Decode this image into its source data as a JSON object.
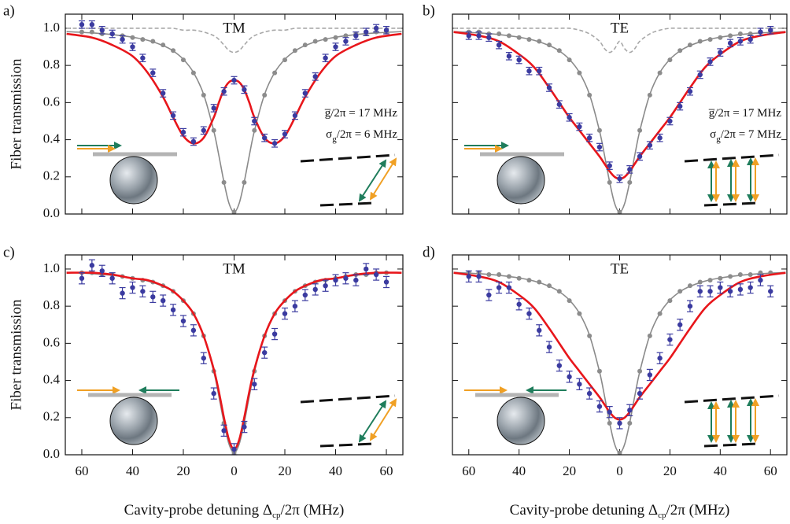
{
  "chart_data": [
    {
      "type": "scatter",
      "panel": "a)",
      "title": "TM",
      "annotations": [
        [
          "g̅/2π = 17 MHz"
        ],
        [
          "σ",
          "g",
          "/2π = 6 MHz"
        ]
      ],
      "y_label": "Fiber transmission",
      "x": [
        -60,
        -56,
        -52,
        -48,
        -44,
        -40,
        -36,
        -32,
        -28,
        -24,
        -20,
        -16,
        -12,
        -8,
        -4,
        0,
        4,
        8,
        12,
        16,
        20,
        24,
        28,
        32,
        36,
        40,
        44,
        48,
        52,
        56,
        60
      ],
      "curve_x": [
        -66,
        -56,
        -48,
        -40,
        -34,
        -28,
        -24,
        -20,
        -16,
        -12,
        -8,
        -6,
        -4,
        -2,
        0,
        2,
        4,
        6,
        8,
        12,
        16,
        20,
        24,
        28,
        34,
        40,
        48,
        56,
        66
      ],
      "xlim": [
        -66.5,
        66.5
      ],
      "ylim": [
        0,
        1.076
      ],
      "xticks": [
        {
          "value": -60,
          "label": "60"
        },
        {
          "value": -40,
          "label": "40"
        },
        {
          "value": -20,
          "label": "20"
        },
        0,
        20,
        40,
        60
      ],
      "yticks": [
        {
          "value": 0,
          "label": "0.0"
        },
        0.2,
        0.4,
        0.6,
        0.8,
        {
          "value": 1,
          "label": "1.0"
        }
      ],
      "show_xtick_labels": false,
      "show_ytick_labels": true,
      "series": [
        {
          "style": "line",
          "color": "#8a8a8a",
          "values": [
            0.982,
            0.975,
            0.966,
            0.952,
            0.935,
            0.907,
            0.878,
            0.833,
            0.762,
            0.644,
            0.447,
            0.315,
            0.173,
            0.057,
            0.01,
            0.057,
            0.173,
            0.315,
            0.447,
            0.644,
            0.762,
            0.833,
            0.878,
            0.907,
            0.935,
            0.952,
            0.966,
            0.975,
            0.982
          ]
        },
        {
          "style": "dashed",
          "color": "#a8a8a8",
          "values": [
            1,
            1,
            1,
            1,
            1,
            1,
            1,
            0.99,
            0.99,
            0.98,
            0.96,
            0.94,
            0.91,
            0.88,
            0.87,
            0.88,
            0.91,
            0.94,
            0.96,
            0.98,
            0.99,
            0.99,
            1,
            1,
            1,
            1,
            1,
            1,
            1
          ]
        },
        {
          "style": "points",
          "color": "#8c8c8c",
          "values": [
            0.98,
            0.98,
            0.97,
            0.97,
            0.96,
            0.95,
            0.94,
            0.93,
            0.91,
            0.88,
            0.83,
            0.76,
            0.64,
            0.45,
            0.17,
            0.01,
            0.17,
            0.45,
            0.64,
            0.76,
            0.83,
            0.88,
            0.91,
            0.93,
            0.94,
            0.95,
            0.96,
            0.97,
            0.97,
            0.98,
            0.98
          ]
        },
        {
          "style": "line",
          "color": "#e8161b",
          "values": [
            0.97,
            0.95,
            0.91,
            0.85,
            0.76,
            0.63,
            0.52,
            0.42,
            0.38,
            0.41,
            0.52,
            0.6,
            0.67,
            0.71,
            0.72,
            0.71,
            0.67,
            0.6,
            0.52,
            0.41,
            0.38,
            0.42,
            0.52,
            0.63,
            0.76,
            0.85,
            0.91,
            0.95,
            0.97
          ]
        },
        {
          "style": "points",
          "color": "#3b3ba0",
          "error": 0.02,
          "values": [
            1.02,
            1.02,
            0.99,
            0.97,
            0.94,
            0.9,
            0.84,
            0.76,
            0.65,
            0.53,
            0.44,
            0.39,
            0.45,
            0.57,
            0.66,
            0.72,
            0.67,
            0.5,
            0.41,
            0.38,
            0.43,
            0.53,
            0.65,
            0.74,
            0.84,
            0.9,
            0.93,
            0.96,
            0.98,
            1.0,
            0.99
          ]
        }
      ]
    },
    {
      "type": "scatter",
      "panel": "b)",
      "title": "TE",
      "annotations": [
        [
          "g̅/2π = 17 MHz"
        ],
        [
          "σ",
          "g",
          "/2π = 7 MHz"
        ]
      ],
      "x": [
        -60,
        -56,
        -52,
        -48,
        -44,
        -40,
        -36,
        -32,
        -28,
        -24,
        -20,
        -16,
        -12,
        -8,
        -4,
        0,
        4,
        8,
        12,
        16,
        20,
        24,
        28,
        32,
        36,
        40,
        44,
        48,
        52,
        56,
        60
      ],
      "curve_x": [
        -66,
        -56,
        -48,
        -40,
        -34,
        -28,
        -24,
        -20,
        -16,
        -12,
        -8,
        -6,
        -4,
        -2,
        0,
        2,
        4,
        6,
        8,
        12,
        16,
        20,
        24,
        28,
        34,
        40,
        48,
        56,
        66
      ],
      "xlim": [
        -66.5,
        66.5
      ],
      "ylim": [
        0,
        1.076
      ],
      "xticks": [
        {
          "value": -60,
          "label": "60"
        },
        {
          "value": -40,
          "label": "40"
        },
        {
          "value": -20,
          "label": "20"
        },
        0,
        20,
        40,
        60
      ],
      "yticks": [
        {
          "value": 0,
          "label": "0.0"
        },
        0.2,
        0.4,
        0.6,
        0.8,
        {
          "value": 1,
          "label": "1.0"
        }
      ],
      "show_xtick_labels": false,
      "show_ytick_labels": false,
      "series": [
        {
          "style": "line",
          "color": "#8a8a8a",
          "values": [
            0.982,
            0.975,
            0.966,
            0.952,
            0.935,
            0.907,
            0.878,
            0.833,
            0.762,
            0.644,
            0.447,
            0.315,
            0.173,
            0.057,
            0.01,
            0.057,
            0.173,
            0.315,
            0.447,
            0.644,
            0.762,
            0.833,
            0.878,
            0.907,
            0.935,
            0.952,
            0.966,
            0.975,
            0.982
          ]
        },
        {
          "style": "dashed",
          "color": "#a8a8a8",
          "values": [
            1,
            1,
            1,
            1,
            1,
            1,
            1,
            1,
            0.99,
            0.97,
            0.93,
            0.89,
            0.87,
            0.89,
            0.93,
            0.89,
            0.87,
            0.89,
            0.93,
            0.97,
            0.99,
            1,
            1,
            1,
            1,
            1,
            1,
            1,
            1
          ]
        },
        {
          "style": "points",
          "color": "#8c8c8c",
          "values": [
            0.98,
            0.98,
            0.97,
            0.97,
            0.96,
            0.95,
            0.94,
            0.93,
            0.91,
            0.88,
            0.83,
            0.76,
            0.64,
            0.45,
            0.17,
            0.01,
            0.17,
            0.45,
            0.64,
            0.76,
            0.83,
            0.88,
            0.91,
            0.93,
            0.94,
            0.95,
            0.96,
            0.97,
            0.97,
            0.98,
            0.98
          ]
        },
        {
          "style": "line",
          "color": "#e8161b",
          "values": [
            0.98,
            0.96,
            0.93,
            0.86,
            0.79,
            0.68,
            0.6,
            0.52,
            0.45,
            0.38,
            0.31,
            0.27,
            0.23,
            0.2,
            0.19,
            0.2,
            0.23,
            0.27,
            0.31,
            0.38,
            0.45,
            0.52,
            0.6,
            0.68,
            0.79,
            0.86,
            0.93,
            0.96,
            0.98
          ]
        },
        {
          "style": "points",
          "color": "#3b3ba0",
          "error": 0.02,
          "values": [
            0.96,
            0.96,
            0.95,
            0.91,
            0.85,
            0.83,
            0.77,
            0.77,
            0.68,
            0.59,
            0.52,
            0.47,
            0.41,
            0.36,
            0.26,
            0.19,
            0.24,
            0.31,
            0.37,
            0.41,
            0.5,
            0.58,
            0.66,
            0.75,
            0.82,
            0.87,
            0.92,
            0.93,
            0.94,
            0.98,
            0.99
          ]
        }
      ]
    },
    {
      "type": "scatter",
      "panel": "c)",
      "title": "TM",
      "y_label": "Fiber transmission",
      "x_label": [
        "Cavity-probe detuning  Δ",
        "cp",
        "/2π (MHz)"
      ],
      "x": [
        -60,
        -56,
        -52,
        -48,
        -44,
        -40,
        -36,
        -32,
        -28,
        -24,
        -20,
        -16,
        -12,
        -8,
        -4,
        0,
        4,
        8,
        12,
        16,
        20,
        24,
        28,
        32,
        36,
        40,
        44,
        48,
        52,
        56,
        60
      ],
      "curve_x": [
        -66,
        -56,
        -48,
        -40,
        -34,
        -28,
        -24,
        -20,
        -16,
        -12,
        -8,
        -6,
        -4,
        -2,
        0,
        2,
        4,
        6,
        8,
        12,
        16,
        20,
        24,
        28,
        34,
        40,
        48,
        56,
        66
      ],
      "xlim": [
        -66.5,
        66.5
      ],
      "ylim": [
        0,
        1.076
      ],
      "xticks": [
        {
          "value": -60,
          "label": "60"
        },
        {
          "value": -40,
          "label": "40"
        },
        {
          "value": -20,
          "label": "20"
        },
        0,
        20,
        40,
        60
      ],
      "yticks": [
        {
          "value": 0,
          "label": "0.0"
        },
        0.2,
        0.4,
        0.6,
        0.8,
        {
          "value": 1,
          "label": "1.0"
        }
      ],
      "show_xtick_labels": true,
      "show_ytick_labels": true,
      "series": [
        {
          "style": "line",
          "color": "#8a8a8a",
          "values": [
            0.982,
            0.975,
            0.966,
            0.952,
            0.935,
            0.907,
            0.878,
            0.833,
            0.762,
            0.644,
            0.447,
            0.315,
            0.173,
            0.057,
            0.01,
            0.057,
            0.173,
            0.315,
            0.447,
            0.644,
            0.762,
            0.833,
            0.878,
            0.907,
            0.935,
            0.952,
            0.966,
            0.975,
            0.982
          ]
        },
        {
          "style": "points",
          "color": "#8c8c8c",
          "values": [
            0.98,
            0.98,
            0.97,
            0.97,
            0.96,
            0.95,
            0.94,
            0.93,
            0.91,
            0.88,
            0.83,
            0.76,
            0.64,
            0.45,
            0.17,
            0.01,
            0.17,
            0.45,
            0.64,
            0.76,
            0.83,
            0.88,
            0.91,
            0.93,
            0.94,
            0.95,
            0.96,
            0.97,
            0.97,
            0.98,
            0.98
          ]
        },
        {
          "style": "line",
          "color": "#e8161b",
          "values": [
            0.98,
            0.98,
            0.97,
            0.95,
            0.94,
            0.91,
            0.88,
            0.83,
            0.76,
            0.64,
            0.46,
            0.34,
            0.2,
            0.08,
            0.03,
            0.08,
            0.2,
            0.34,
            0.46,
            0.64,
            0.76,
            0.83,
            0.88,
            0.91,
            0.94,
            0.95,
            0.97,
            0.98,
            0.98
          ]
        },
        {
          "style": "points",
          "color": "#3b3ba0",
          "error": 0.03,
          "values": [
            0.95,
            1.02,
            0.99,
            0.95,
            0.87,
            0.9,
            0.88,
            0.85,
            0.83,
            0.78,
            0.72,
            0.67,
            0.52,
            0.33,
            0.13,
            0.03,
            0.15,
            0.38,
            0.55,
            0.65,
            0.76,
            0.8,
            0.86,
            0.89,
            0.91,
            0.94,
            0.95,
            0.94,
            1.0,
            0.97,
            0.93
          ]
        }
      ]
    },
    {
      "type": "scatter",
      "panel": "d)",
      "title": "TE",
      "x_label": [
        "Cavity-probe detuning  Δ",
        "cp",
        "/2π (MHz)"
      ],
      "x": [
        -60,
        -56,
        -52,
        -48,
        -44,
        -40,
        -36,
        -32,
        -28,
        -24,
        -20,
        -16,
        -12,
        -8,
        -4,
        0,
        4,
        8,
        12,
        16,
        20,
        24,
        28,
        32,
        36,
        40,
        44,
        48,
        52,
        56,
        60
      ],
      "curve_x": [
        -66,
        -56,
        -48,
        -40,
        -34,
        -28,
        -24,
        -20,
        -16,
        -12,
        -8,
        -6,
        -4,
        -2,
        0,
        2,
        4,
        6,
        8,
        12,
        16,
        20,
        24,
        28,
        34,
        40,
        48,
        56,
        66
      ],
      "xlim": [
        -66.5,
        66.5
      ],
      "ylim": [
        0,
        1.076
      ],
      "xticks": [
        {
          "value": -60,
          "label": "60"
        },
        {
          "value": -40,
          "label": "40"
        },
        {
          "value": -20,
          "label": "20"
        },
        0,
        20,
        40,
        60
      ],
      "yticks": [
        {
          "value": 0,
          "label": "0.0"
        },
        0.2,
        0.4,
        0.6,
        0.8,
        {
          "value": 1,
          "label": "1.0"
        }
      ],
      "show_xtick_labels": true,
      "show_ytick_labels": false,
      "series": [
        {
          "style": "line",
          "color": "#8a8a8a",
          "values": [
            0.982,
            0.975,
            0.966,
            0.952,
            0.935,
            0.907,
            0.878,
            0.833,
            0.762,
            0.644,
            0.447,
            0.315,
            0.173,
            0.057,
            0.01,
            0.057,
            0.173,
            0.315,
            0.447,
            0.644,
            0.762,
            0.833,
            0.878,
            0.907,
            0.935,
            0.952,
            0.966,
            0.975,
            0.982
          ]
        },
        {
          "style": "points",
          "color": "#8c8c8c",
          "values": [
            0.98,
            0.98,
            0.97,
            0.97,
            0.96,
            0.95,
            0.94,
            0.93,
            0.91,
            0.88,
            0.83,
            0.76,
            0.64,
            0.45,
            0.17,
            0.01,
            0.17,
            0.45,
            0.64,
            0.76,
            0.83,
            0.88,
            0.91,
            0.93,
            0.94,
            0.95,
            0.96,
            0.97,
            0.97,
            0.98,
            0.98
          ]
        },
        {
          "style": "line",
          "color": "#e8161b",
          "values": [
            0.98,
            0.96,
            0.93,
            0.86,
            0.79,
            0.68,
            0.6,
            0.52,
            0.45,
            0.38,
            0.31,
            0.27,
            0.23,
            0.2,
            0.19,
            0.2,
            0.23,
            0.27,
            0.31,
            0.38,
            0.45,
            0.52,
            0.6,
            0.68,
            0.79,
            0.86,
            0.93,
            0.96,
            0.98
          ]
        },
        {
          "style": "points",
          "color": "#3b3ba0",
          "error": 0.03,
          "values": [
            0.96,
            0.96,
            0.86,
            0.9,
            0.9,
            0.81,
            0.76,
            0.67,
            0.58,
            0.48,
            0.42,
            0.38,
            0.33,
            0.26,
            0.23,
            0.17,
            0.24,
            0.33,
            0.43,
            0.52,
            0.62,
            0.7,
            0.8,
            0.88,
            0.88,
            0.9,
            0.88,
            0.89,
            0.9,
            0.94,
            0.88
          ]
        }
      ]
    }
  ]
}
